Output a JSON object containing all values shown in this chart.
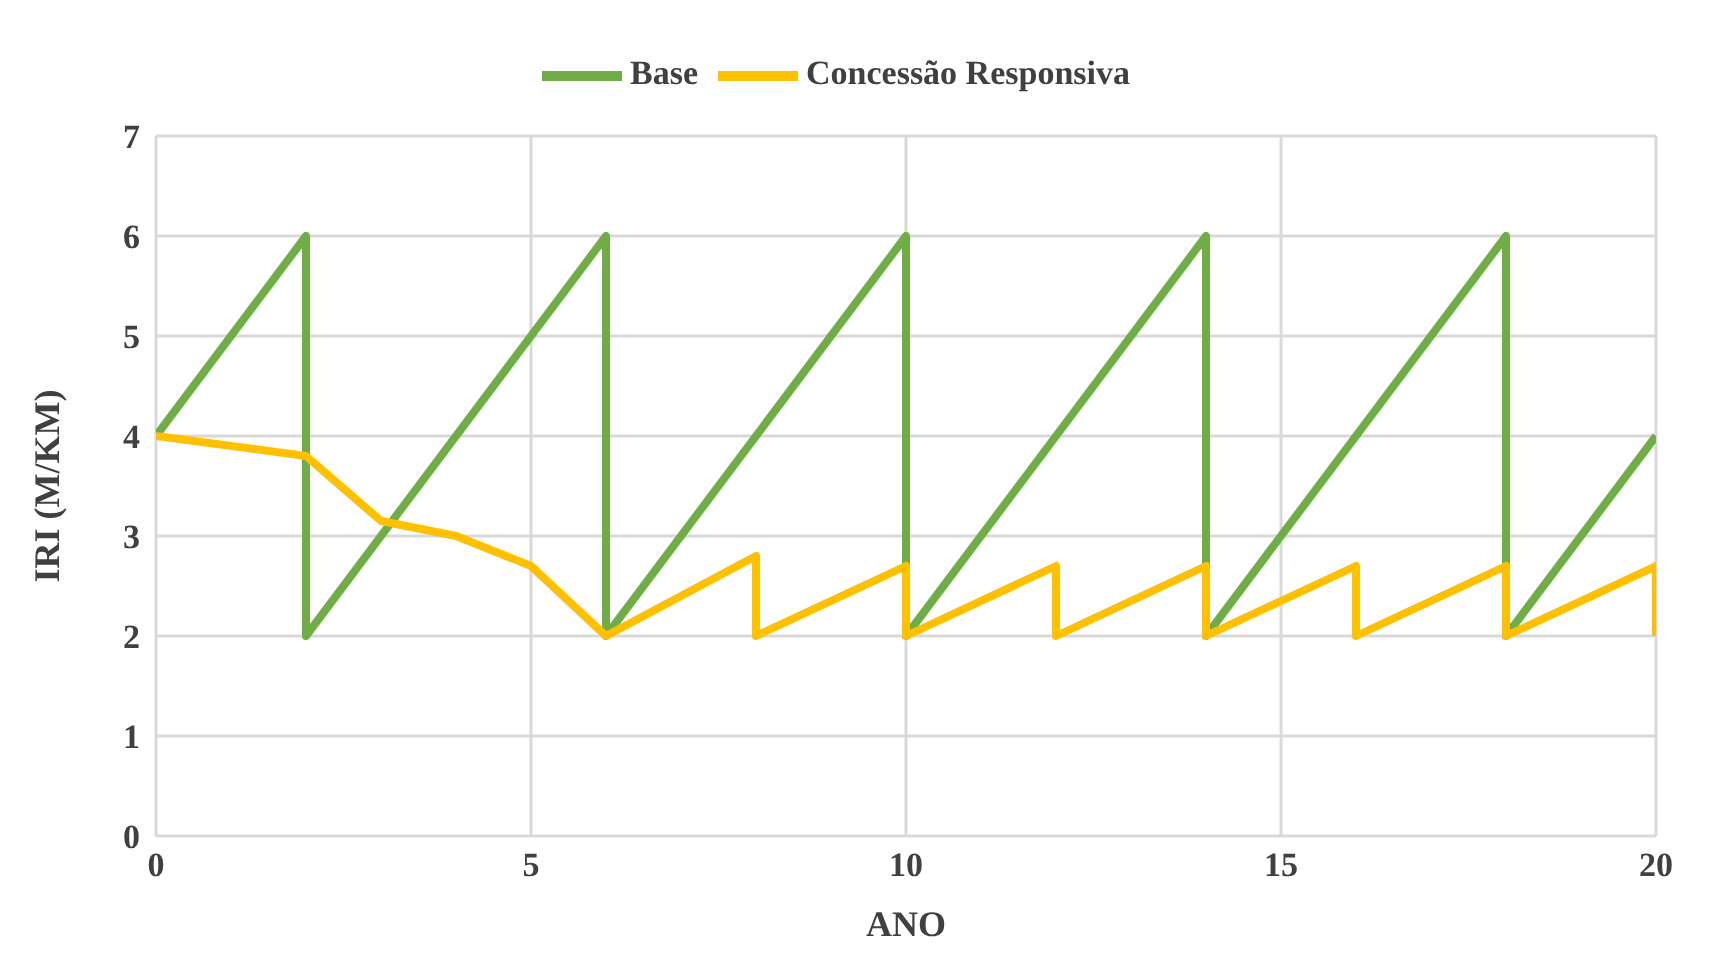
{
  "chart_data": {
    "type": "line",
    "xlabel": "ANO",
    "ylabel": "IRI (M/KM)",
    "xlim": [
      0,
      20
    ],
    "xticks": [
      0,
      5,
      10,
      15,
      20
    ],
    "ylim": [
      0,
      7
    ],
    "yticks": [
      0,
      1,
      2,
      3,
      4,
      5,
      6,
      7
    ],
    "grid": true,
    "legend": "top",
    "marker": "none",
    "line_style": "solid",
    "series": [
      {
        "name": "Base",
        "color": "#70ad47",
        "x": [
          0,
          2,
          2,
          6,
          6,
          10,
          10,
          14,
          14,
          18,
          18,
          20
        ],
        "values": [
          4,
          6,
          2,
          6,
          2,
          6,
          2,
          6,
          2,
          6,
          2,
          4
        ]
      },
      {
        "name": "Concessão Responsiva",
        "color": "#ffc000",
        "x": [
          0,
          2,
          3,
          4,
          5,
          6,
          8,
          8,
          10,
          10,
          12,
          12,
          14,
          14,
          16,
          16,
          18,
          18,
          20,
          20
        ],
        "values": [
          4,
          3.8,
          3.15,
          3,
          2.7,
          2,
          2.8,
          2,
          2.7,
          2,
          2.7,
          2,
          2.7,
          2,
          2.7,
          2,
          2.7,
          2,
          2.7,
          2
        ]
      }
    ]
  }
}
